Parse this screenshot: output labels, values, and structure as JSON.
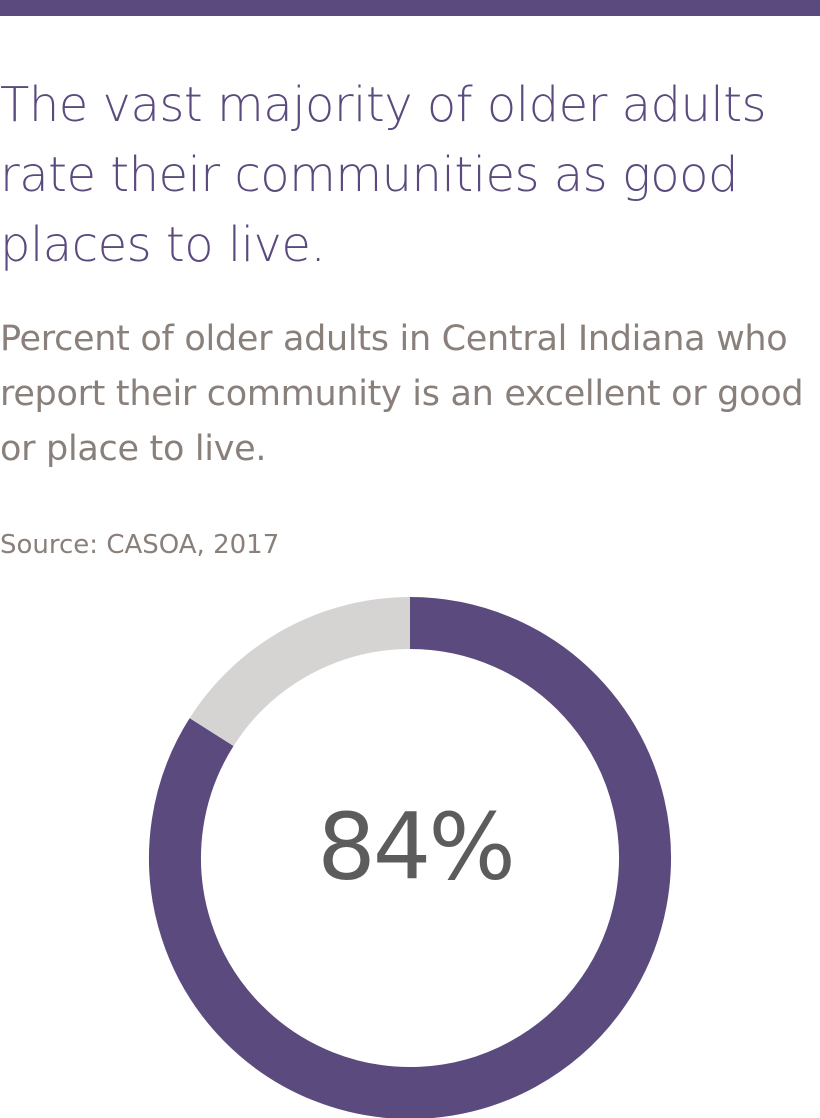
{
  "colors": {
    "accent": "#5a4a7e",
    "remainder": "#d6d3d3",
    "subtitle_text": "#8a807b",
    "center_text": "#5c5c5c"
  },
  "headline": "The vast majority of older adults rate their communities as good places to live.",
  "subtitle": "Percent of older adults in Central Indiana who report their community is an excellent or good or place to live.",
  "source": "Source: CASOA, 2017",
  "chart_data": {
    "type": "pie",
    "style": "donut",
    "values": [
      84,
      16
    ],
    "value_label": "84%"
  }
}
